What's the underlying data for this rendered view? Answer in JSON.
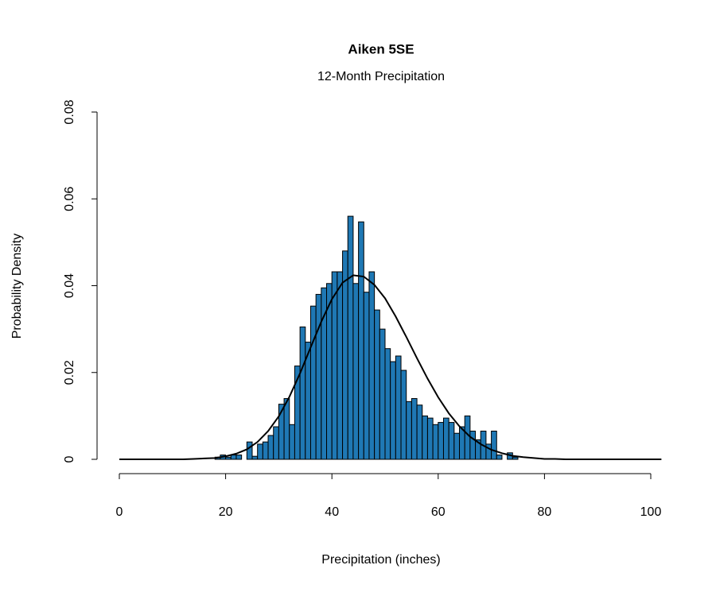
{
  "chart_data": {
    "type": "histogram",
    "title": "Aiken 5SE",
    "subtitle": "12-Month Precipitation",
    "x_label": "Precipitation (inches)",
    "y_label": "Probability Density",
    "bins": [
      18,
      19,
      20,
      21,
      22,
      23,
      24,
      25,
      26,
      27,
      28,
      29,
      30,
      31,
      32,
      33,
      34,
      35,
      36,
      37,
      38,
      39,
      40,
      41,
      42,
      43,
      44,
      45,
      46,
      47,
      48,
      49,
      50,
      51,
      52,
      53,
      54,
      55,
      56,
      57,
      58,
      59,
      60,
      61,
      62,
      63,
      64,
      65,
      66,
      67,
      68,
      69,
      70,
      71,
      72,
      73,
      74,
      75
    ],
    "counts": [
      0.0005,
      0.001,
      0.0005,
      0.001,
      0.001,
      0,
      0.004,
      0.0007,
      0.0035,
      0.004,
      0.0055,
      0.0075,
      0.0127,
      0.014,
      0.008,
      0.0215,
      0.0305,
      0.027,
      0.0353,
      0.038,
      0.0395,
      0.0405,
      0.0432,
      0.0432,
      0.048,
      0.056,
      0.0405,
      0.0547,
      0.0385,
      0.0432,
      0.0344,
      0.03,
      0.0255,
      0.0225,
      0.0238,
      0.0205,
      0.0133,
      0.014,
      0.0125,
      0.01,
      0.0095,
      0.008,
      0.0085,
      0.0095,
      0.0085,
      0.006,
      0.0075,
      0.01,
      0.0065,
      0.0045,
      0.0065,
      0.0035,
      0.0065,
      0.001,
      0,
      0.0015,
      0.0005
    ],
    "color": "#1f78b4",
    "curve": {
      "x": [
        0,
        2,
        4,
        6,
        8,
        10,
        12,
        14,
        16,
        18,
        20,
        22,
        24,
        26,
        28,
        30,
        32,
        34,
        36,
        38,
        40,
        42,
        44,
        46,
        48,
        50,
        52,
        54,
        56,
        58,
        60,
        62,
        64,
        66,
        68,
        70,
        72,
        74,
        76,
        78,
        80,
        82,
        84,
        86,
        88,
        90,
        92,
        94,
        96,
        98,
        100,
        102
      ],
      "y": [
        0,
        0,
        0,
        0,
        0,
        0,
        0,
        0.0001,
        0.0002,
        0.0003,
        0.0007,
        0.0013,
        0.0023,
        0.004,
        0.0065,
        0.0099,
        0.0144,
        0.0198,
        0.0258,
        0.0317,
        0.0369,
        0.0407,
        0.0424,
        0.0421,
        0.0402,
        0.0371,
        0.0329,
        0.0282,
        0.0233,
        0.0186,
        0.0143,
        0.0106,
        0.0076,
        0.0052,
        0.0035,
        0.0022,
        0.0014,
        0.0008,
        0.0005,
        0.0003,
        0.0001,
        0.0001,
        0,
        0,
        0,
        0,
        0,
        0,
        0,
        0,
        0,
        0
      ],
      "color": "#000000"
    },
    "xlim": [
      0,
      100
    ],
    "ylim": [
      0,
      0.08
    ],
    "xticks": [
      0,
      20,
      40,
      60,
      80,
      100
    ],
    "yticks": [
      0,
      0.02,
      0.04,
      0.06,
      0.08
    ]
  }
}
